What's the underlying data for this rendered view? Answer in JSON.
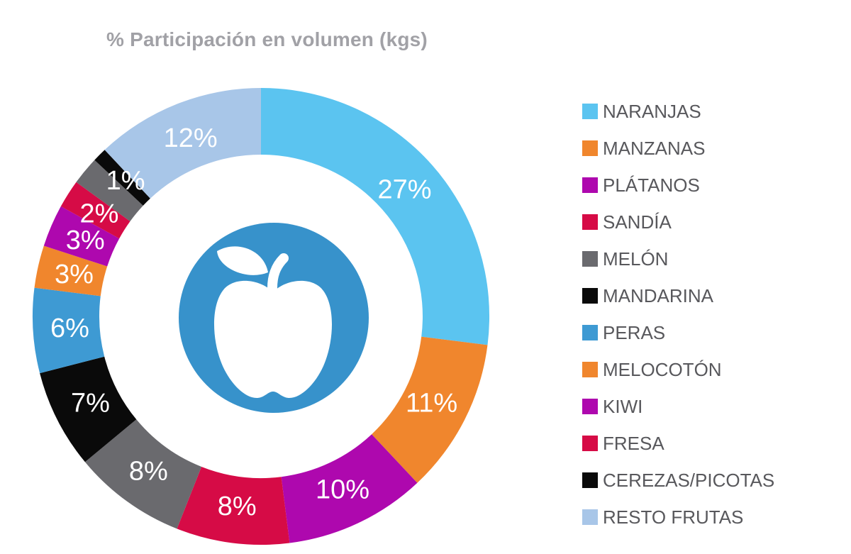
{
  "chart_data": {
    "type": "donut",
    "title": "% Participación en volumen (kgs)",
    "unit": "percent of volume (kgs)",
    "legend_position": "right",
    "center_icon": "apple-icon",
    "slices": [
      {
        "name": "NARANJAS",
        "value": 27,
        "display": "27%",
        "color": "#5bc4f0",
        "label_visible": true
      },
      {
        "name": "MANZANAS",
        "value": 11,
        "display": "11%",
        "color": "#f0862d",
        "label_visible": true
      },
      {
        "name": "PLÁTANOS",
        "value": 10,
        "display": "10%",
        "color": "#ae08ae",
        "label_visible": true
      },
      {
        "name": "SANDÍA",
        "value": 8,
        "display": "8%",
        "color": "#d60b46",
        "label_visible": true
      },
      {
        "name": "MELÓN",
        "value": 8,
        "display": "8%",
        "color": "#6a6a6e",
        "label_visible": true
      },
      {
        "name": "MANDARINA",
        "value": 7,
        "display": "7%",
        "color": "#0a0a0a",
        "label_visible": true
      },
      {
        "name": "PERAS",
        "value": 6,
        "display": "6%",
        "color": "#3e9ad3",
        "label_visible": true
      },
      {
        "name": "MELOCOTÓN",
        "value": 3,
        "display": "3%",
        "color": "#f0862d",
        "label_visible": true
      },
      {
        "name": "KIWI",
        "value": 3,
        "display": "3%",
        "color": "#ae08ae",
        "label_visible": true
      },
      {
        "name": "FRESA",
        "value": 2,
        "display": "2%",
        "color": "#d60b46",
        "label_visible": true
      },
      {
        "name": "",
        "value": 2,
        "display": "",
        "color": "#6a6a6e",
        "label_visible": false
      },
      {
        "name": "CEREZAS/PICOTAS",
        "value": 1,
        "display": "1%",
        "color": "#0a0a0a",
        "label_visible": true
      },
      {
        "name": "RESTO FRUTAS",
        "value": 12,
        "display": "12%",
        "color": "#a8c6e8",
        "label_visible": true
      }
    ],
    "legend": {
      "items": [
        {
          "label": "NARANJAS",
          "color": "#5bc4f0"
        },
        {
          "label": "MANZANAS",
          "color": "#f0862d"
        },
        {
          "label": "PLÁTANOS",
          "color": "#ae08ae"
        },
        {
          "label": "SANDÍA",
          "color": "#d60b46"
        },
        {
          "label": "MELÓN",
          "color": "#6a6a6e"
        },
        {
          "label": "MANDARINA",
          "color": "#0a0a0a"
        },
        {
          "label": "PERAS",
          "color": "#3e9ad3"
        },
        {
          "label": "MELOCOTÓN",
          "color": "#f0862d"
        },
        {
          "label": "KIWI",
          "color": "#ae08ae"
        },
        {
          "label": "FRESA",
          "color": "#d60b46"
        },
        {
          "label": "CEREZAS/PICOTAS",
          "color": "#0a0a0a"
        },
        {
          "label": "RESTO FRUTAS",
          "color": "#a8c6e8"
        }
      ]
    },
    "colors": {
      "title_text": "#a1a1a6",
      "legend_text": "#58585c",
      "center_circle": "#3792cb",
      "data_label_text": "#ffffff"
    }
  }
}
